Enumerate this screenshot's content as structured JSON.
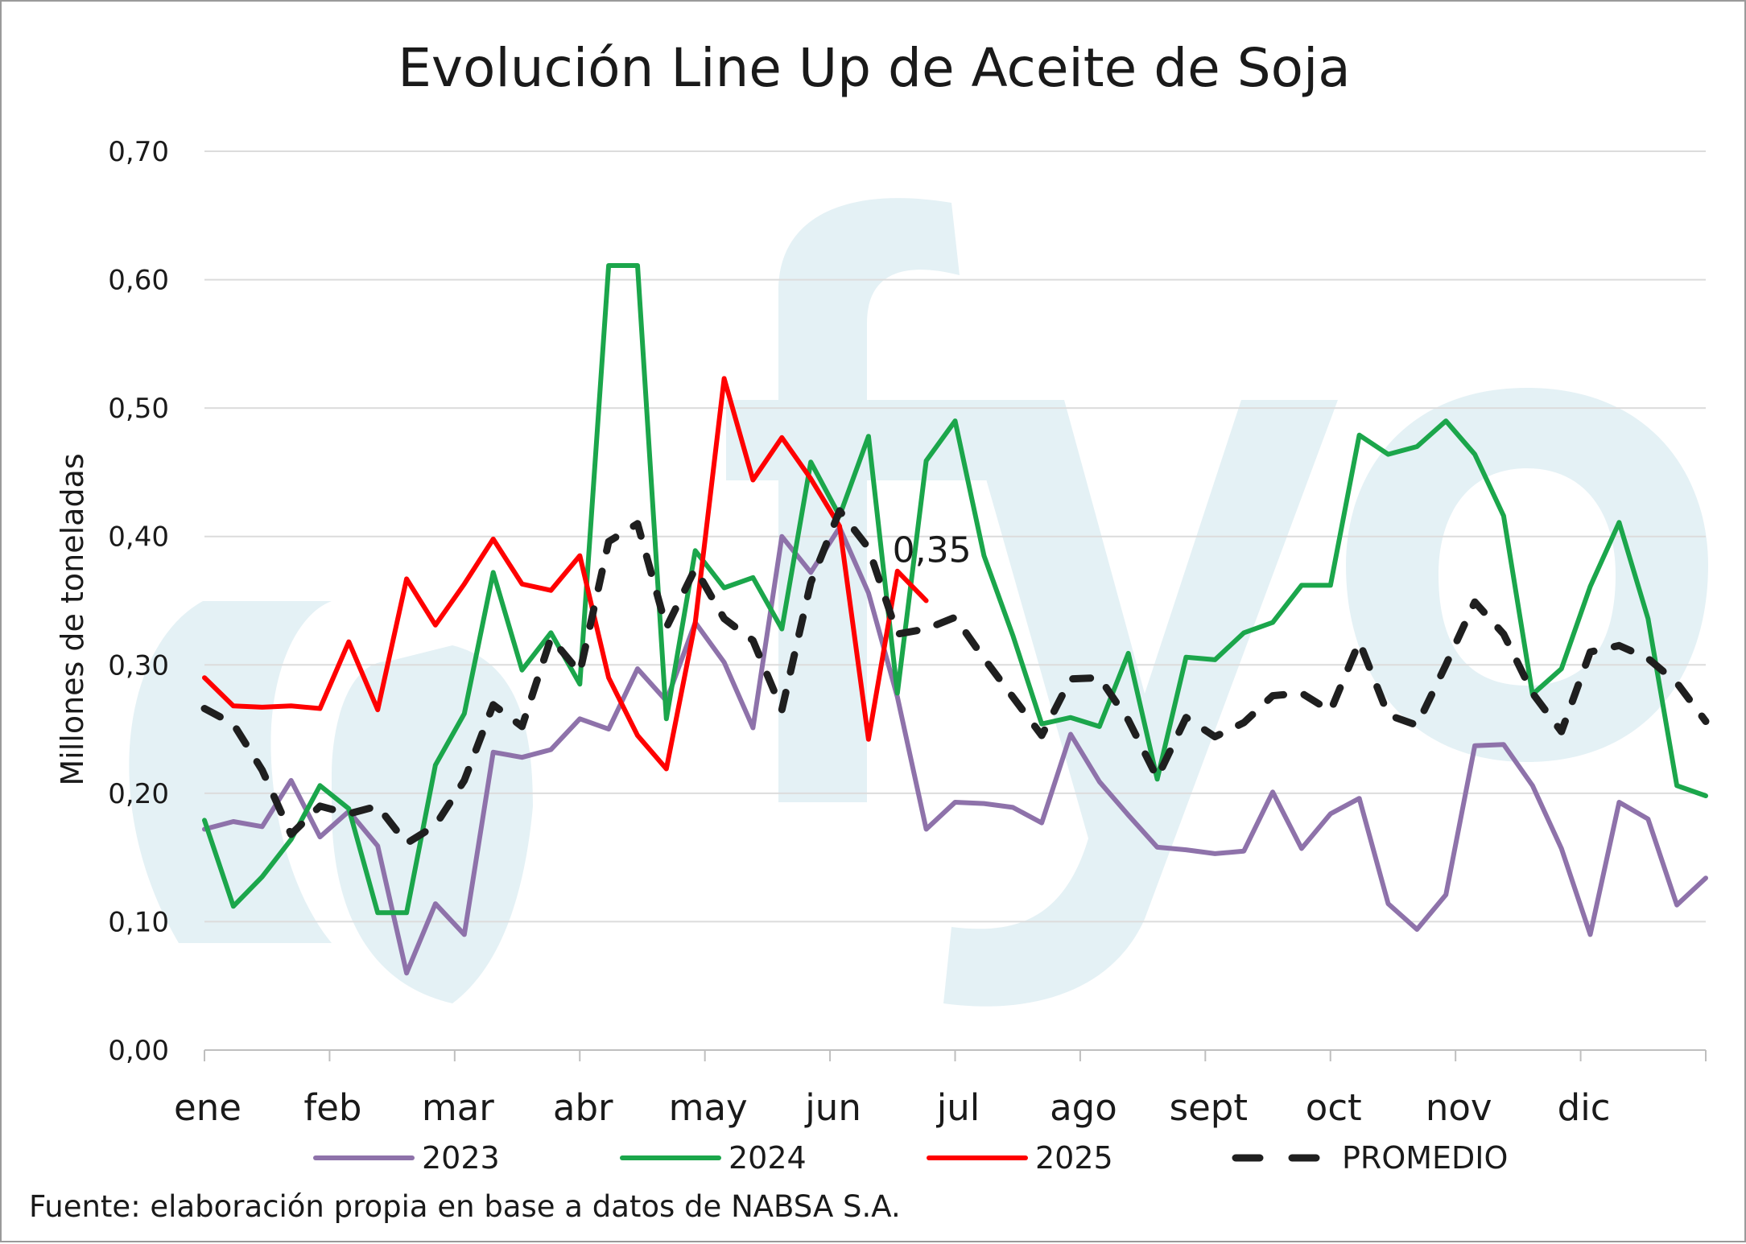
{
  "chart_data": {
    "type": "line",
    "title": "Evolución Line Up de Aceite de Soja",
    "ylabel": "Millones de toneladas",
    "xlabel": "",
    "ylim": [
      0,
      0.7
    ],
    "yticks": [
      "0,00",
      "0,10",
      "0,20",
      "0,30",
      "0,40",
      "0,50",
      "0,60",
      "0,70"
    ],
    "ytick_values": [
      0,
      0.1,
      0.2,
      0.3,
      0.4,
      0.5,
      0.6,
      0.7
    ],
    "months": [
      "ene",
      "feb",
      "mar",
      "abr",
      "may",
      "jun",
      "jul",
      "ago",
      "sept",
      "oct",
      "nov",
      "dic"
    ],
    "grid": true,
    "legend_position": "bottom",
    "annotation": {
      "text": "0,35",
      "series": "2025",
      "week": 25
    },
    "source": "Fuente: elaboración propia en base a datos de NABSA S.A.",
    "watermark": "fyo",
    "series": [
      {
        "name": "2023",
        "color": "#8e72aa",
        "style": "solid",
        "values": [
          0.172,
          0.178,
          0.174,
          0.21,
          0.166,
          0.186,
          0.159,
          0.06,
          0.114,
          0.09,
          0.232,
          0.228,
          0.234,
          0.258,
          0.25,
          0.297,
          0.272,
          0.333,
          0.302,
          0.251,
          0.4,
          0.372,
          0.407,
          0.356,
          0.275,
          0.172,
          0.193,
          0.192,
          0.189,
          0.177,
          0.246,
          0.209,
          0.183,
          0.158,
          0.156,
          0.153,
          0.155,
          0.201,
          0.157,
          0.184,
          0.196,
          0.114,
          0.094,
          0.121,
          0.237,
          0.238,
          0.206,
          0.157,
          0.09,
          0.193,
          0.18,
          0.113,
          0.134
        ]
      },
      {
        "name": "2024",
        "color": "#1ba64b",
        "style": "solid",
        "values": [
          0.179,
          0.112,
          0.135,
          0.164,
          0.206,
          0.188,
          0.107,
          0.107,
          0.222,
          0.262,
          0.372,
          0.296,
          0.325,
          0.285,
          0.611,
          0.611,
          0.258,
          0.389,
          0.36,
          0.368,
          0.328,
          0.458,
          0.416,
          0.478,
          0.278,
          0.459,
          0.49,
          0.385,
          0.323,
          0.254,
          0.259,
          0.252,
          0.309,
          0.211,
          0.306,
          0.304,
          0.325,
          0.333,
          0.362,
          0.362,
          0.479,
          0.464,
          0.47,
          0.49,
          0.464,
          0.416,
          0.277,
          0.297,
          0.361,
          0.411,
          0.336,
          0.206,
          0.198
        ]
      },
      {
        "name": "2025",
        "color": "#ff0000",
        "style": "solid",
        "values": [
          0.29,
          0.268,
          0.267,
          0.268,
          0.266,
          0.318,
          0.265,
          0.367,
          0.331,
          0.363,
          0.398,
          0.363,
          0.358,
          0.385,
          0.29,
          0.245,
          0.219,
          0.333,
          0.523,
          0.444,
          0.477,
          0.445,
          0.408,
          0.242,
          0.373,
          0.35
        ]
      },
      {
        "name": "PROMEDIO",
        "color": "#1f1f1f",
        "style": "dashed",
        "values": [
          0.266,
          0.254,
          0.218,
          0.168,
          0.19,
          0.184,
          0.19,
          0.161,
          0.175,
          0.21,
          0.269,
          0.252,
          0.321,
          0.294,
          0.396,
          0.41,
          0.329,
          0.375,
          0.336,
          0.319,
          0.265,
          0.364,
          0.42,
          0.391,
          0.324,
          0.328,
          0.337,
          0.305,
          0.275,
          0.245,
          0.289,
          0.29,
          0.257,
          0.212,
          0.259,
          0.244,
          0.255,
          0.276,
          0.278,
          0.264,
          0.318,
          0.261,
          0.253,
          0.3,
          0.349,
          0.324,
          0.278,
          0.248,
          0.31,
          0.315,
          0.305,
          0.286,
          0.256
        ]
      }
    ]
  }
}
